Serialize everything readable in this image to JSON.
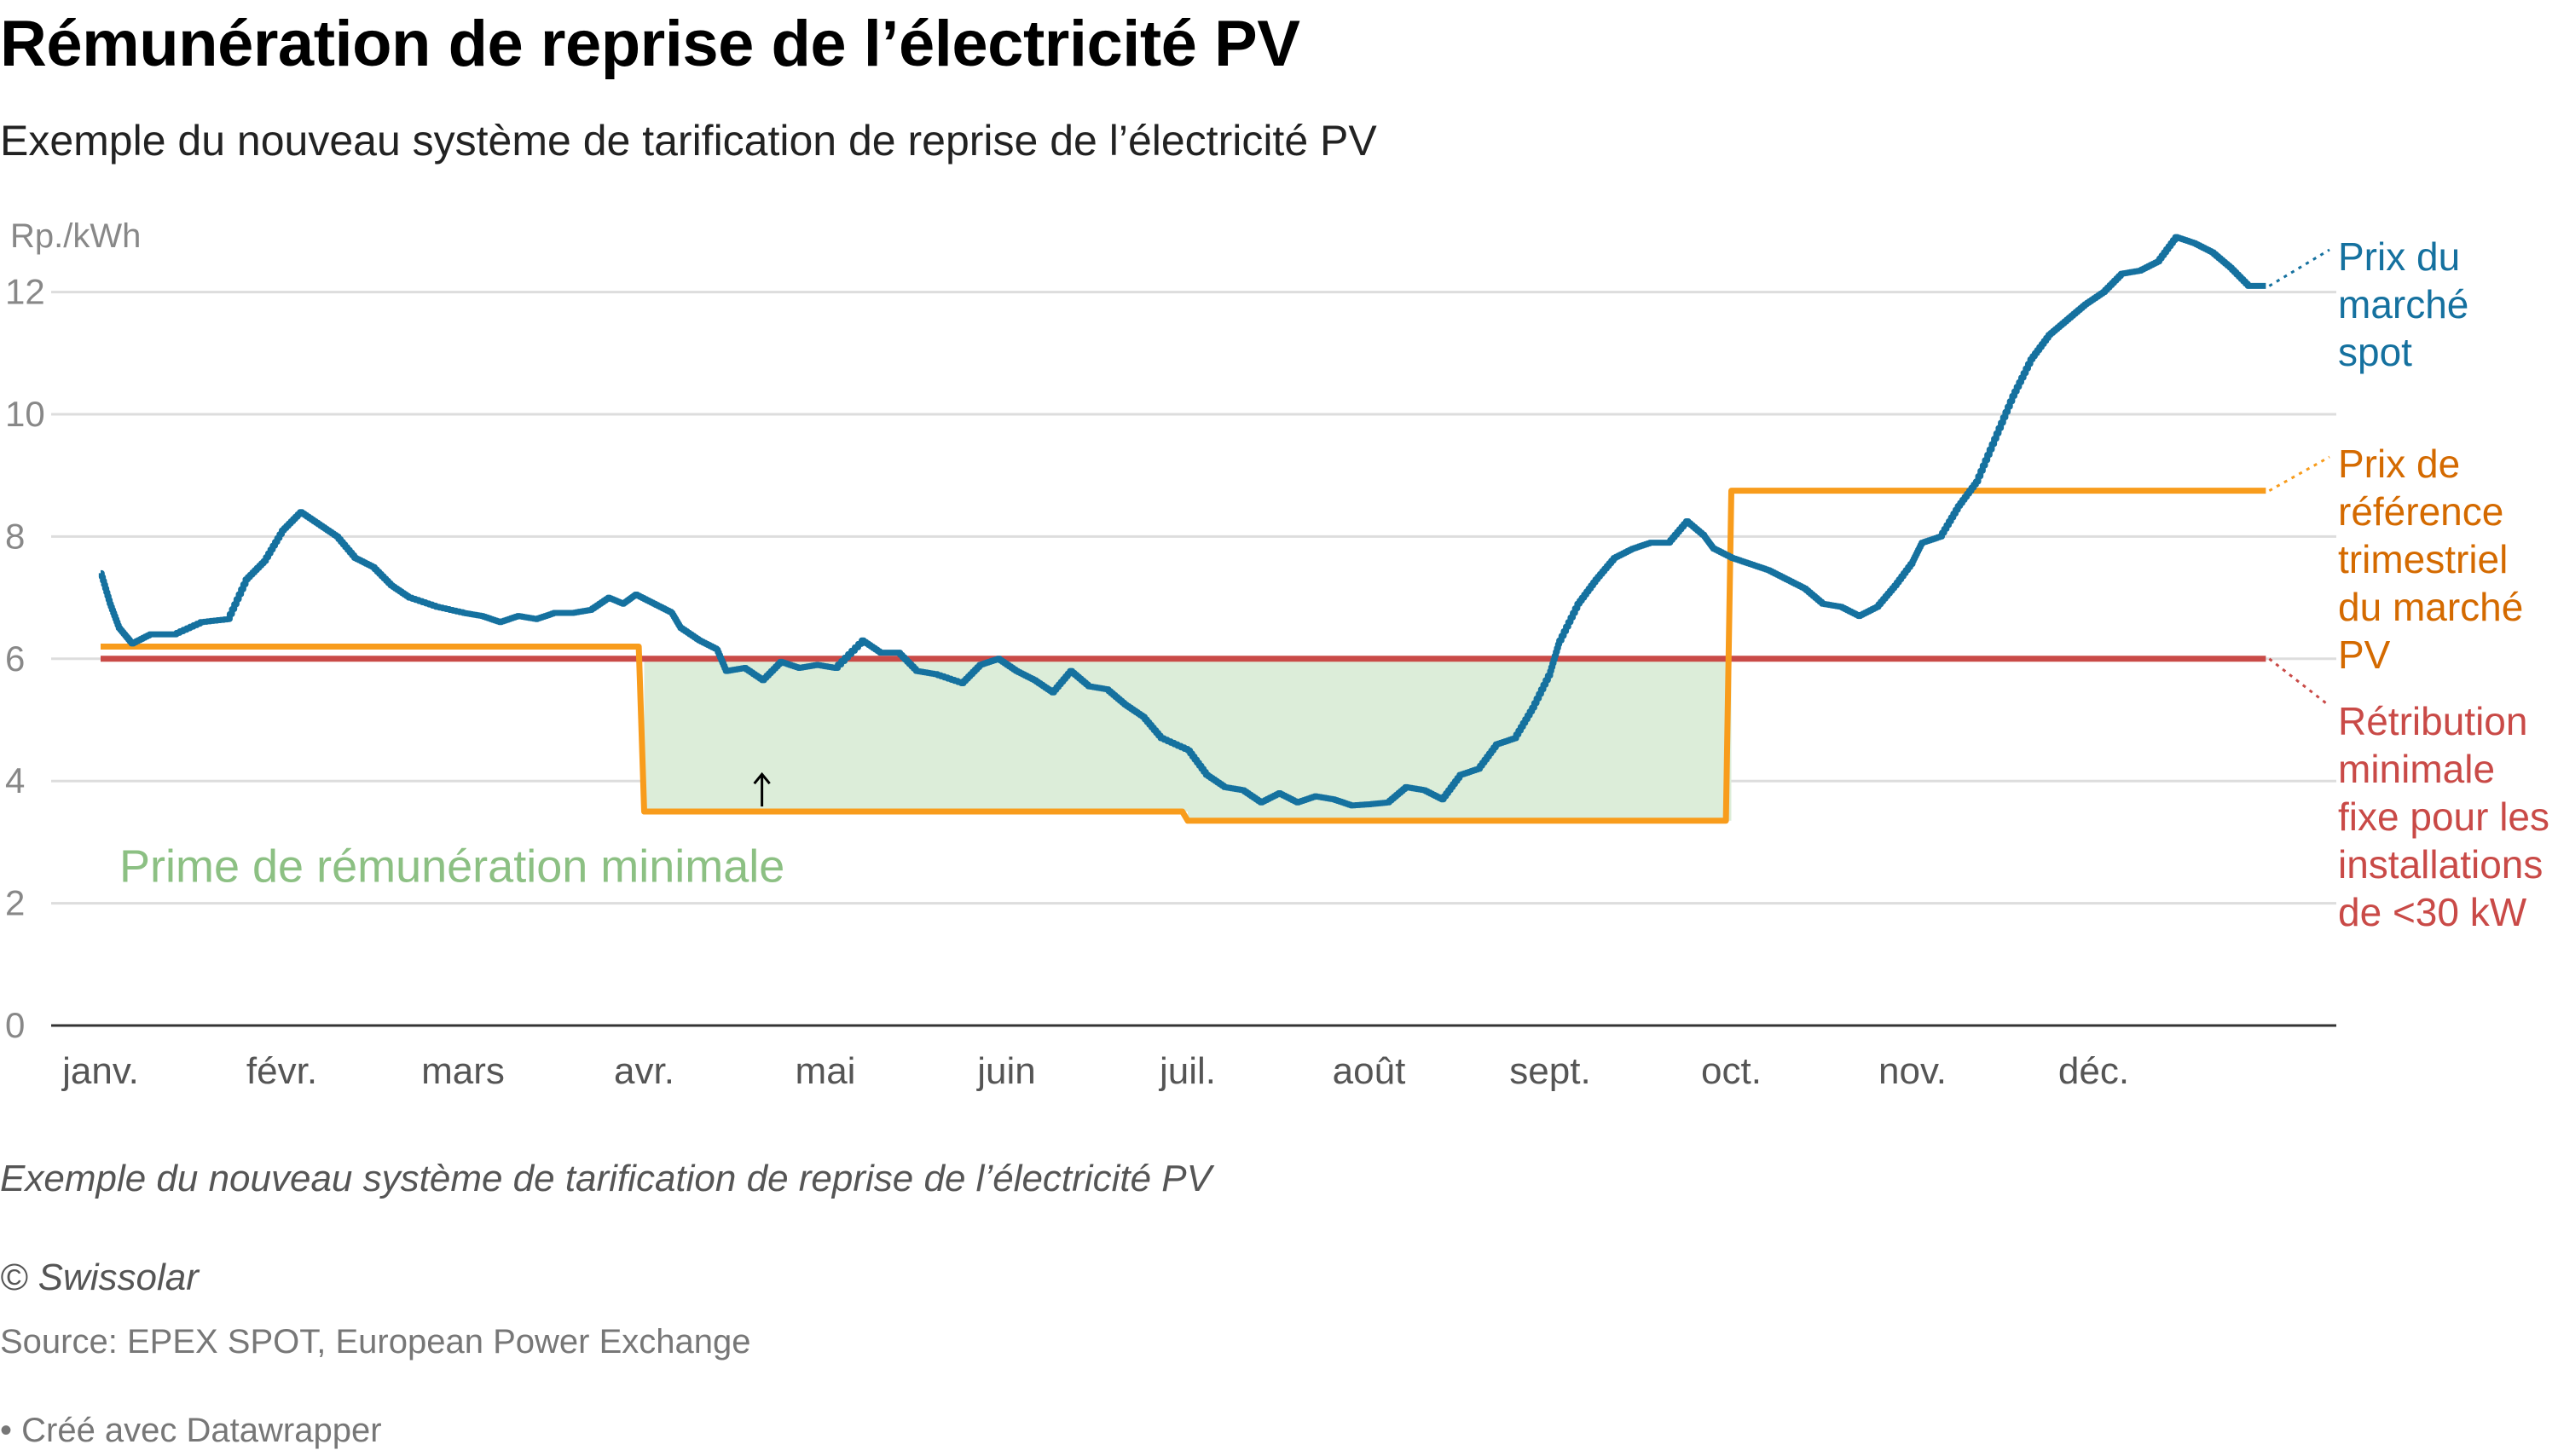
{
  "header": {
    "title": "Rémunération de reprise de l’électricité PV",
    "subtitle": "Exemple du nouveau système de tarification de reprise de l’électricité PV"
  },
  "footer": {
    "notes": "Exemple du nouveau système de tarification de reprise de l’électricité PV",
    "byline": "© Swissolar",
    "source": "Source: EPEX SPOT, European Power Exchange",
    "credit": "• Créé avec Datawrapper"
  },
  "chart_data": {
    "type": "line",
    "title": "Rémunération de reprise de l’électricité PV",
    "ylabel": "Rp./kWh",
    "xlabel": "",
    "ylim": [
      0,
      12.5
    ],
    "yticks": [
      0,
      2,
      4,
      6,
      8,
      10,
      12
    ],
    "xlim": [
      1,
      12.95
    ],
    "months": [
      "janv.",
      "févr.",
      "mars",
      "avr.",
      "mai",
      "juin",
      "juil.",
      "août",
      "sept.",
      "oct.",
      "nov.",
      "déc."
    ],
    "grid": true,
    "legend": "direct labels on right",
    "colors": {
      "spot": "#15719f",
      "reference": "#f89c1c",
      "minimum": "#c94a47",
      "premium_area": "#dcedd9",
      "premium_label": "#8cc083"
    },
    "series": [
      {
        "key": "spot",
        "label_lines": [
          "Prix du",
          "marché",
          "spot"
        ],
        "points": [
          [
            1.0,
            7.4
          ],
          [
            1.05,
            6.9
          ],
          [
            1.1,
            6.5
          ],
          [
            1.17,
            6.25
          ],
          [
            1.27,
            6.4
          ],
          [
            1.4,
            6.4
          ],
          [
            1.55,
            6.6
          ],
          [
            1.7,
            6.65
          ],
          [
            1.8,
            7.3
          ],
          [
            1.9,
            7.6
          ],
          [
            2.0,
            8.1
          ],
          [
            2.1,
            8.4
          ],
          [
            2.2,
            8.2
          ],
          [
            2.3,
            8.0
          ],
          [
            2.4,
            7.65
          ],
          [
            2.5,
            7.5
          ],
          [
            2.6,
            7.2
          ],
          [
            2.7,
            7.0
          ],
          [
            2.85,
            6.85
          ],
          [
            3.0,
            6.75
          ],
          [
            3.1,
            6.7
          ],
          [
            3.2,
            6.6
          ],
          [
            3.3,
            6.7
          ],
          [
            3.4,
            6.65
          ],
          [
            3.5,
            6.75
          ],
          [
            3.6,
            6.75
          ],
          [
            3.7,
            6.8
          ],
          [
            3.8,
            7.0
          ],
          [
            3.88,
            6.9
          ],
          [
            3.95,
            7.05
          ],
          [
            4.05,
            6.9
          ],
          [
            4.15,
            6.75
          ],
          [
            4.2,
            6.5
          ],
          [
            4.3,
            6.3
          ],
          [
            4.4,
            6.15
          ],
          [
            4.45,
            5.8
          ],
          [
            4.55,
            5.85
          ],
          [
            4.65,
            5.65
          ],
          [
            4.75,
            5.95
          ],
          [
            4.85,
            5.85
          ],
          [
            4.95,
            5.9
          ],
          [
            5.05,
            5.85
          ],
          [
            5.2,
            6.3
          ],
          [
            5.3,
            6.1
          ],
          [
            5.4,
            6.1
          ],
          [
            5.5,
            5.8
          ],
          [
            5.6,
            5.75
          ],
          [
            5.75,
            5.6
          ],
          [
            5.85,
            5.9
          ],
          [
            5.95,
            6.0
          ],
          [
            6.05,
            5.8
          ],
          [
            6.15,
            5.65
          ],
          [
            6.25,
            5.45
          ],
          [
            6.35,
            5.8
          ],
          [
            6.45,
            5.55
          ],
          [
            6.55,
            5.5
          ],
          [
            6.65,
            5.25
          ],
          [
            6.75,
            5.05
          ],
          [
            6.85,
            4.7
          ],
          [
            7.0,
            4.5
          ],
          [
            7.1,
            4.1
          ],
          [
            7.2,
            3.9
          ],
          [
            7.3,
            3.85
          ],
          [
            7.4,
            3.65
          ],
          [
            7.5,
            3.8
          ],
          [
            7.6,
            3.65
          ],
          [
            7.7,
            3.75
          ],
          [
            7.8,
            3.7
          ],
          [
            7.9,
            3.6
          ],
          [
            8.0,
            3.62
          ],
          [
            8.1,
            3.65
          ],
          [
            8.2,
            3.9
          ],
          [
            8.3,
            3.85
          ],
          [
            8.4,
            3.7
          ],
          [
            8.5,
            4.1
          ],
          [
            8.6,
            4.2
          ],
          [
            8.7,
            4.6
          ],
          [
            8.8,
            4.7
          ],
          [
            8.9,
            5.2
          ],
          [
            9.0,
            5.8
          ],
          [
            9.05,
            6.3
          ],
          [
            9.15,
            6.9
          ],
          [
            9.25,
            7.3
          ],
          [
            9.35,
            7.65
          ],
          [
            9.45,
            7.8
          ],
          [
            9.55,
            7.9
          ],
          [
            9.65,
            7.9
          ],
          [
            9.75,
            8.25
          ],
          [
            9.85,
            8.0
          ],
          [
            9.9,
            7.8
          ],
          [
            10.0,
            7.65
          ],
          [
            10.1,
            7.55
          ],
          [
            10.2,
            7.45
          ],
          [
            10.3,
            7.3
          ],
          [
            10.4,
            7.15
          ],
          [
            10.5,
            6.9
          ],
          [
            10.6,
            6.85
          ],
          [
            10.7,
            6.7
          ],
          [
            10.8,
            6.85
          ],
          [
            10.9,
            7.2
          ],
          [
            11.0,
            7.6
          ],
          [
            11.05,
            7.9
          ],
          [
            11.15,
            8.0
          ],
          [
            11.25,
            8.5
          ],
          [
            11.35,
            8.9
          ],
          [
            11.45,
            9.6
          ],
          [
            11.55,
            10.3
          ],
          [
            11.65,
            10.9
          ],
          [
            11.75,
            11.3
          ],
          [
            11.85,
            11.55
          ],
          [
            11.95,
            11.8
          ],
          [
            12.05,
            12.0
          ],
          [
            12.15,
            12.3
          ],
          [
            12.25,
            12.35
          ],
          [
            12.35,
            12.5
          ],
          [
            12.45,
            12.9
          ],
          [
            12.55,
            12.8
          ],
          [
            12.65,
            12.65
          ],
          [
            12.75,
            12.4
          ],
          [
            12.85,
            12.1
          ],
          [
            12.95,
            12.1
          ]
        ]
      },
      {
        "key": "reference",
        "label_lines": [
          "Prix de",
          "référence",
          "trimestriel",
          "du marché",
          "PV"
        ],
        "points": [
          [
            1.0,
            6.2
          ],
          [
            3.97,
            6.2
          ],
          [
            4.0,
            3.5
          ],
          [
            6.97,
            3.5
          ],
          [
            7.0,
            3.35
          ],
          [
            9.97,
            3.35
          ],
          [
            10.0,
            8.75
          ],
          [
            12.95,
            8.75
          ]
        ]
      },
      {
        "key": "minimum",
        "label_lines": [
          "Rétribution",
          "minimale",
          "fixe pour les",
          "installations",
          "de <30 kW"
        ],
        "points": [
          [
            1.0,
            6.0
          ],
          [
            12.95,
            6.0
          ]
        ]
      }
    ],
    "annotations": [
      {
        "key": "premium",
        "text": "Prime de rémunération minimale",
        "x_start": 4.0,
        "x_end": 10.0,
        "band_low": 3.5,
        "band_high": 6.0
      }
    ]
  }
}
